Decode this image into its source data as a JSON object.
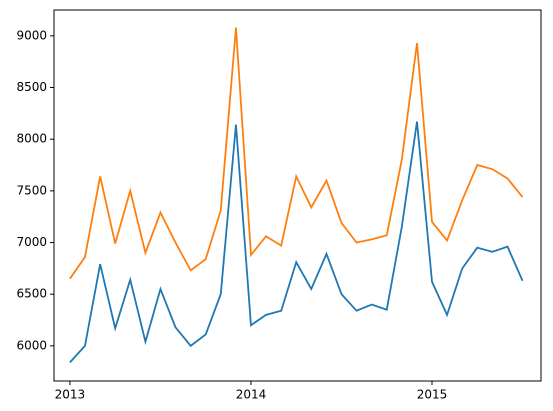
{
  "chart_data": {
    "type": "line",
    "x": [
      2013,
      2013.083,
      2013.167,
      2013.25,
      2013.333,
      2013.417,
      2013.5,
      2013.583,
      2013.667,
      2013.75,
      2013.833,
      2013.917,
      2014,
      2014.083,
      2014.167,
      2014.25,
      2014.333,
      2014.417,
      2014.5,
      2014.583,
      2014.667,
      2014.75,
      2014.833,
      2014.917,
      2015,
      2015.083,
      2015.167,
      2015.25,
      2015.333,
      2015.417,
      2015.5
    ],
    "series": [
      {
        "color": "#1f77b4",
        "values": [
          5840,
          6000,
          6790,
          6170,
          6640,
          6040,
          6550,
          6180,
          6000,
          6110,
          6500,
          8140,
          6200,
          6300,
          6340,
          6810,
          6550,
          6890,
          6500,
          6340,
          6400,
          6350,
          7150,
          8170,
          6620,
          6300,
          6750,
          6950,
          6910,
          6960,
          6630
        ]
      },
      {
        "color": "#ff7f0e",
        "values": [
          6650,
          6860,
          7640,
          6990,
          7500,
          6900,
          7290,
          7000,
          6730,
          6840,
          7310,
          9080,
          6880,
          7060,
          6970,
          7640,
          7340,
          7600,
          7190,
          7000,
          7030,
          7070,
          7800,
          8930,
          7200,
          7020,
          7410,
          7750,
          7710,
          7620,
          7440
        ]
      }
    ],
    "xlim": [
      2012.912,
      2015.602
    ],
    "xticks": [
      2013,
      2014,
      2015
    ],
    "ylim": [
      5660,
      9250
    ],
    "yticks": [
      6000,
      6500,
      7000,
      7500,
      8000,
      8500,
      9000
    ]
  }
}
